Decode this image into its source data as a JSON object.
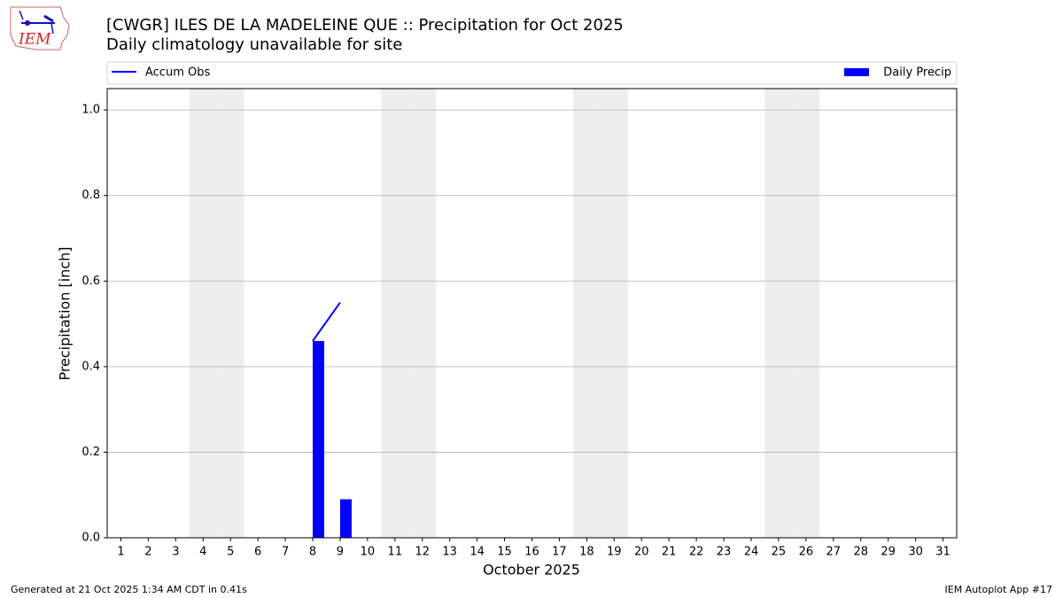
{
  "logo_text": "IEM",
  "footer": {
    "left": "Generated at 21 Oct 2025 1:34 AM CDT in 0.41s",
    "right": "IEM Autoplot App #17"
  },
  "chart_data": {
    "type": "bar",
    "title": "[CWGR] ILES DE LA MADELEINE  QUE :: Precipitation for Oct 2025",
    "subtitle": "Daily climatology unavailable for site",
    "x_label": "October 2025",
    "y_label": "Precipitation [inch]",
    "categories": [
      "1",
      "2",
      "3",
      "4",
      "5",
      "6",
      "7",
      "8",
      "9",
      "10",
      "11",
      "12",
      "13",
      "14",
      "15",
      "16",
      "17",
      "18",
      "19",
      "20",
      "21",
      "22",
      "23",
      "24",
      "25",
      "26",
      "27",
      "28",
      "29",
      "30",
      "31"
    ],
    "series": [
      {
        "name": "Accum Obs",
        "type": "line",
        "color": "#0000ff",
        "values": [
          null,
          null,
          null,
          null,
          null,
          null,
          null,
          0.46,
          0.55,
          null,
          null,
          null,
          null,
          null,
          null,
          null,
          null,
          null,
          null,
          null,
          null,
          null,
          null,
          null,
          null,
          null,
          null,
          null,
          null,
          null,
          null
        ]
      },
      {
        "name": "Daily Precip",
        "type": "bar",
        "color": "#0000ff",
        "values": [
          null,
          null,
          null,
          null,
          null,
          null,
          null,
          0.46,
          0.09,
          null,
          null,
          null,
          null,
          null,
          null,
          null,
          null,
          null,
          null,
          null,
          null,
          null,
          null,
          null,
          null,
          null,
          null,
          null,
          null,
          null,
          null
        ]
      }
    ],
    "shaded_categories": [
      "4",
      "5",
      "11",
      "12",
      "18",
      "19",
      "25",
      "26"
    ],
    "shade_color": "#eeeeee",
    "ylim": [
      0,
      1.05
    ],
    "yticks": [
      {
        "value": 0,
        "label": "0.0"
      },
      0.2,
      0.4,
      0.6,
      0.8,
      {
        "value": 1,
        "label": "1.0"
      }
    ],
    "grid": true,
    "legend": "top"
  }
}
